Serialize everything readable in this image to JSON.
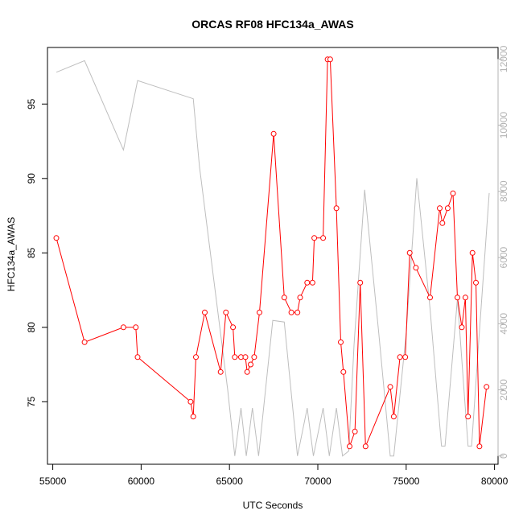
{
  "chart_data": {
    "type": "line",
    "title": "ORCAS RF08 HFC134a_AWAS",
    "xlabel": "UTC Seconds",
    "ylabel": "HFC134a_AWAS",
    "xlim": [
      54700,
      80200
    ],
    "ylim": [
      70.8,
      98.8
    ],
    "y2lim": [
      -250,
      12350
    ],
    "x_ticks": [
      55000,
      60000,
      65000,
      70000,
      75000,
      80000
    ],
    "y_ticks": [
      75,
      80,
      85,
      90,
      95
    ],
    "y2_ticks": [
      0,
      2000,
      4000,
      6000,
      8000,
      10000,
      12000
    ],
    "grid": false,
    "series": [
      {
        "color": "#ff0000",
        "style": "line+open-circles",
        "axis": "left",
        "points": [
          [
            55200,
            86
          ],
          [
            56800,
            79
          ],
          [
            59000,
            80
          ],
          [
            59700,
            80
          ],
          [
            59800,
            78
          ],
          [
            62800,
            75
          ],
          [
            62950,
            74
          ],
          [
            63100,
            78
          ],
          [
            63600,
            81
          ],
          [
            64500,
            77
          ],
          [
            64800,
            81
          ],
          [
            65200,
            80
          ],
          [
            65300,
            78
          ],
          [
            65650,
            78
          ],
          [
            65900,
            78
          ],
          [
            66000,
            77
          ],
          [
            66200,
            77.5
          ],
          [
            66400,
            78
          ],
          [
            66700,
            81
          ],
          [
            67500,
            93
          ],
          [
            68100,
            82
          ],
          [
            68500,
            81
          ],
          [
            68850,
            81
          ],
          [
            69000,
            82
          ],
          [
            69400,
            83
          ],
          [
            69700,
            83
          ],
          [
            69800,
            86
          ],
          [
            70300,
            86
          ],
          [
            70550,
            98
          ],
          [
            70700,
            98
          ],
          [
            71050,
            88
          ],
          [
            71300,
            79
          ],
          [
            71450,
            77
          ],
          [
            71800,
            72
          ],
          [
            72100,
            73
          ],
          [
            72400,
            83
          ],
          [
            72700,
            72
          ],
          [
            74100,
            76
          ],
          [
            74300,
            74
          ],
          [
            74650,
            78
          ],
          [
            74950,
            78
          ],
          [
            75200,
            85
          ],
          [
            75550,
            84
          ],
          [
            76350,
            82
          ],
          [
            76900,
            88
          ],
          [
            77050,
            87
          ],
          [
            77350,
            88
          ],
          [
            77650,
            89
          ],
          [
            77900,
            82
          ],
          [
            78150,
            80
          ],
          [
            78350,
            82
          ],
          [
            78500,
            74
          ],
          [
            78750,
            85
          ],
          [
            78950,
            83
          ],
          [
            79150,
            72
          ],
          [
            79550,
            76
          ]
        ]
      },
      {
        "color": "#bebebe",
        "style": "line",
        "axis": "right",
        "points": [
          [
            55200,
            11600
          ],
          [
            56800,
            11950
          ],
          [
            59000,
            9250
          ],
          [
            59800,
            11350
          ],
          [
            62950,
            10800
          ],
          [
            63300,
            8750
          ],
          [
            64900,
            2000
          ],
          [
            65300,
            0
          ],
          [
            65650,
            1450
          ],
          [
            65950,
            0
          ],
          [
            66300,
            1450
          ],
          [
            66650,
            0
          ],
          [
            67450,
            4100
          ],
          [
            68100,
            4050
          ],
          [
            68850,
            0
          ],
          [
            69400,
            1450
          ],
          [
            69750,
            0
          ],
          [
            70300,
            1450
          ],
          [
            70650,
            0
          ],
          [
            71050,
            1450
          ],
          [
            71400,
            0
          ],
          [
            71750,
            150
          ],
          [
            72050,
            3350
          ],
          [
            72650,
            8050
          ],
          [
            73450,
            3700
          ],
          [
            74100,
            0
          ],
          [
            74300,
            0
          ],
          [
            75000,
            3700
          ],
          [
            75600,
            8400
          ],
          [
            76350,
            4450
          ],
          [
            77000,
            300
          ],
          [
            77200,
            300
          ],
          [
            77900,
            4750
          ],
          [
            78500,
            300
          ],
          [
            78700,
            300
          ],
          [
            79100,
            3400
          ],
          [
            79700,
            7950
          ]
        ]
      }
    ]
  }
}
